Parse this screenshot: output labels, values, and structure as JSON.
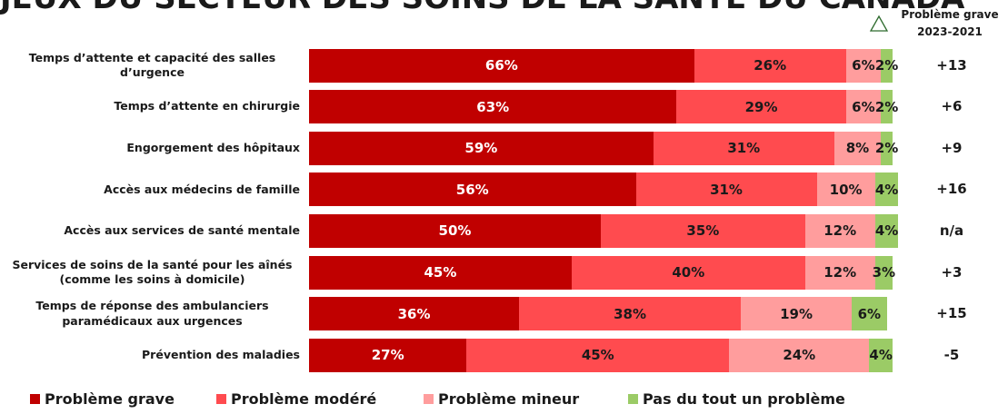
{
  "chart_data": {
    "type": "bar",
    "orientation": "horizontal",
    "stacked": true,
    "title": "JEUX DU SECTEUR DES SOINS DE LA SANTÉ DU CANADA",
    "categories": [
      "Temps d’attente et capacité des salles d’urgence",
      "Temps d’attente en chirurgie",
      "Engorgement des hôpitaux",
      "Accès aux médecins de famille",
      "Accès aux services de santé mentale",
      "Services de soins de la santé pour les aînés (comme les soins à domicile)",
      "Temps de réponse des ambulanciers paramédicaux aux urgences",
      "Prévention des maladies"
    ],
    "xlim": [
      0,
      100
    ],
    "series": [
      {
        "name": "Problème grave",
        "color": "#c00000",
        "text_color": "#ffffff",
        "values": [
          66,
          63,
          59,
          56,
          50,
          45,
          36,
          27
        ],
        "value_labels": [
          "66%",
          "63%",
          "59%",
          "56%",
          "50%",
          "45%",
          "36%",
          "27%"
        ]
      },
      {
        "name": "Problème modéré",
        "color": "#ff4b4f",
        "text_color": "#1a1a1a",
        "values": [
          26,
          29,
          31,
          31,
          35,
          40,
          38,
          45
        ],
        "value_labels": [
          "26%",
          "29%",
          "31%",
          "31%",
          "35%",
          "40%",
          "38%",
          "45%"
        ]
      },
      {
        "name": "Problème mineur",
        "color": "#ff9d9d",
        "text_color": "#1a1a1a",
        "values": [
          6,
          6,
          8,
          10,
          12,
          12,
          19,
          24
        ],
        "value_labels": [
          "6%",
          "6%",
          "8%",
          "10%",
          "12%",
          "12%",
          "19%",
          "24%"
        ]
      },
      {
        "name": "Pas du tout un problème",
        "color": "#9bcb66",
        "text_color": "#1a1a1a",
        "values": [
          2,
          2,
          2,
          4,
          4,
          3,
          6,
          4
        ],
        "value_labels": [
          "2%",
          "2%",
          "2%",
          "4%",
          "4%",
          "3%",
          "6%",
          "4%"
        ]
      }
    ],
    "change_header": [
      "Problème grave",
      "2023-2021"
    ],
    "change_labels": [
      "+13",
      "+6",
      "+9",
      "+16",
      "n/a",
      "+3",
      "+15",
      "-5"
    ]
  }
}
